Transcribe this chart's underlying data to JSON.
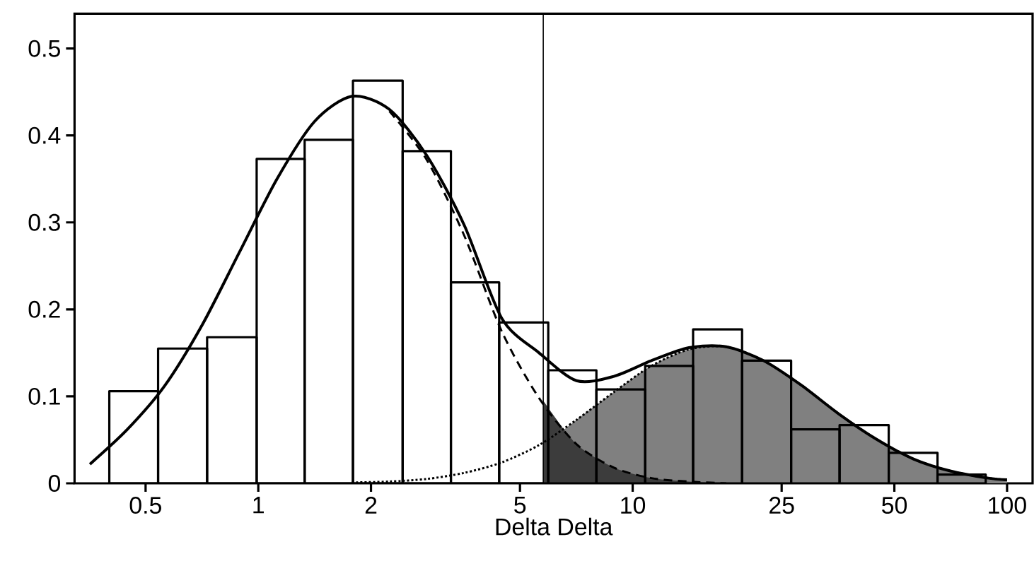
{
  "chart_data": {
    "type": "histogram",
    "xlabel": "Delta Delta",
    "log": "x",
    "xlim": [
      0.323,
      117
    ],
    "ylim": [
      0,
      0.54
    ],
    "xticks": [
      0.5,
      1,
      2,
      5,
      10,
      25,
      50,
      100
    ],
    "yticks": [
      0,
      0.1,
      0.2,
      0.3,
      0.4,
      0.5
    ],
    "bins": [
      0.4,
      0.54,
      0.73,
      0.99,
      1.33,
      1.79,
      2.43,
      3.27,
      4.4,
      5.95,
      8.0,
      10.8,
      14.5,
      19.6,
      26.5,
      35.7,
      48.3,
      65.2,
      87.7
    ],
    "values": [
      0.106,
      0.155,
      0.168,
      0.373,
      0.395,
      0.463,
      0.382,
      0.231,
      0.185,
      0.13,
      0.108,
      0.135,
      0.177,
      0.141,
      0.062,
      0.067,
      0.035,
      0.01
    ],
    "color": "#000000",
    "series": [
      {
        "type": "area",
        "color": "#808080",
        "x": [
          5.77,
          7.079,
          8.913,
          11.22,
          14.13,
          17.78,
          22.39,
          28.18,
          35.48,
          44.67,
          56.23,
          70.79,
          89.13,
          100
        ],
        "values": [
          0.043,
          0.073,
          0.105,
          0.135,
          0.154,
          0.157,
          0.141,
          0.113,
          0.08,
          0.051,
          0.028,
          0.014,
          0.006,
          0.004
        ]
      },
      {
        "type": "area",
        "color": "#3c3c3c",
        "x": [
          5.77,
          7.079,
          8.913,
          11.22,
          14.13,
          17.78
        ],
        "values": [
          0.095,
          0.045,
          0.018,
          0.006,
          0.002,
          0.0
        ]
      },
      {
        "type": "line",
        "color": "#000000",
        "line_style": "dotted",
        "x": [
          1.778,
          2.239,
          2.818,
          3.548,
          4.467,
          5.623,
          7.079,
          8.913,
          11.22,
          14.13,
          17.78,
          22.39,
          28.18,
          35.48,
          44.67,
          56.23,
          70.79,
          89.13,
          100
        ],
        "values": [
          0.001,
          0.002,
          0.005,
          0.012,
          0.024,
          0.044,
          0.073,
          0.105,
          0.135,
          0.154,
          0.157,
          0.141,
          0.113,
          0.08,
          0.051,
          0.028,
          0.014,
          0.006,
          0.004
        ]
      },
      {
        "type": "line",
        "color": "#000000",
        "line_style": "dashed",
        "x": [
          2.239,
          2.818,
          3.548,
          4.467,
          5.623,
          7.079,
          8.913,
          11.22,
          14.13,
          17.78
        ],
        "values": [
          0.428,
          0.372,
          0.285,
          0.175,
          0.098,
          0.045,
          0.018,
          0.006,
          0.002,
          0.0
        ]
      },
      {
        "type": "line",
        "color": "#000000",
        "line_style": "solid",
        "x": [
          0.355,
          0.447,
          0.562,
          0.708,
          0.891,
          1.122,
          1.413,
          1.778,
          2.239,
          2.818,
          3.548,
          4.467,
          5.623,
          7.079,
          8.913,
          11.22,
          14.13,
          17.78,
          22.39,
          28.18,
          35.48,
          44.67,
          56.23,
          70.79,
          89.13,
          100
        ],
        "values": [
          0.022,
          0.062,
          0.112,
          0.182,
          0.266,
          0.35,
          0.416,
          0.445,
          0.43,
          0.377,
          0.297,
          0.19,
          0.15,
          0.118,
          0.123,
          0.141,
          0.156,
          0.157,
          0.141,
          0.113,
          0.08,
          0.051,
          0.028,
          0.014,
          0.006,
          0.004
        ]
      }
    ],
    "ref_lines": [
      {
        "axis": "x",
        "value": 5.77,
        "color": "#000000"
      }
    ]
  }
}
